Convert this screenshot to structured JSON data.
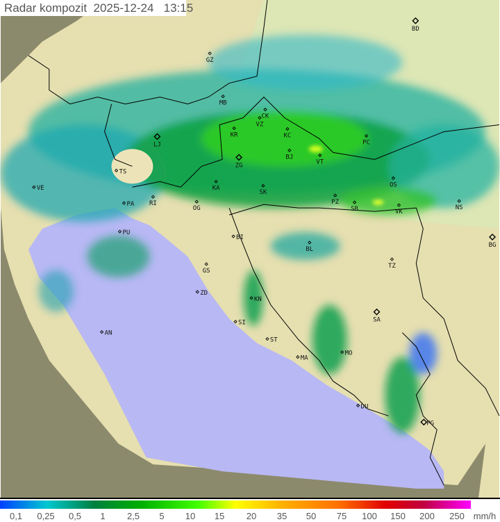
{
  "title": "Radar kompozit  2025-12-24   13:15",
  "legend": {
    "unit": "mm/h",
    "ticks": [
      "0,1",
      "0,25",
      "0,5",
      "1",
      "2,5",
      "5",
      "10",
      "15",
      "20",
      "35",
      "50",
      "75",
      "100",
      "150",
      "200",
      "250"
    ],
    "colors": [
      "#0050ff",
      "#00c8c8",
      "#008040",
      "#00c000",
      "#40ff00",
      "#ffff00",
      "#ffb000",
      "#ff6000",
      "#e00000",
      "#ff00ff"
    ]
  },
  "colors": {
    "sea": "#b8b8f4",
    "land": "#e6dfb0",
    "outside": "#8c8a6c",
    "border": "#000000"
  },
  "cities": [
    {
      "code": "BD",
      "major": true
    },
    {
      "code": "GZ"
    },
    {
      "code": "MB"
    },
    {
      "code": "CK"
    },
    {
      "code": "KR"
    },
    {
      "code": "VZ"
    },
    {
      "code": "KC"
    },
    {
      "code": "PC"
    },
    {
      "code": "LJ",
      "major": true
    },
    {
      "code": "ZG",
      "major": true
    },
    {
      "code": "BJ"
    },
    {
      "code": "VT"
    },
    {
      "code": "TS"
    },
    {
      "code": "VE"
    },
    {
      "code": "RI"
    },
    {
      "code": "KA"
    },
    {
      "code": "SK"
    },
    {
      "code": "OS"
    },
    {
      "code": "PA"
    },
    {
      "code": "OG"
    },
    {
      "code": "PZ"
    },
    {
      "code": "SB"
    },
    {
      "code": "VK"
    },
    {
      "code": "NS"
    },
    {
      "code": "PU"
    },
    {
      "code": "BI"
    },
    {
      "code": "BL"
    },
    {
      "code": "BG",
      "major": true
    },
    {
      "code": "GS"
    },
    {
      "code": "TZ"
    },
    {
      "code": "ZD"
    },
    {
      "code": "KN"
    },
    {
      "code": "SA",
      "major": true
    },
    {
      "code": "SI"
    },
    {
      "code": "AN"
    },
    {
      "code": "ST"
    },
    {
      "code": "MO"
    },
    {
      "code": "MA"
    },
    {
      "code": "DU"
    },
    {
      "code": "PG",
      "major": true
    }
  ]
}
